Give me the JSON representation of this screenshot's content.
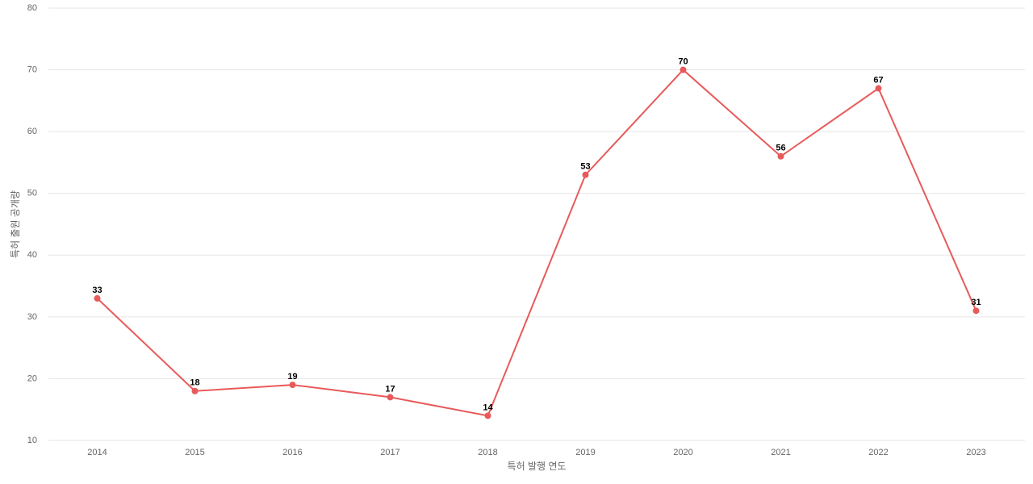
{
  "chart_data": {
    "type": "line",
    "x_label": "특허 발행 연도",
    "y_label": "특허 출원 공개량",
    "categories": [
      "2014",
      "2015",
      "2016",
      "2017",
      "2018",
      "2019",
      "2020",
      "2021",
      "2022",
      "2023"
    ],
    "values": [
      33,
      18,
      19,
      17,
      14,
      53,
      70,
      56,
      67,
      31
    ],
    "color": "#e85a5a",
    "ylim": [
      10,
      80
    ],
    "yticks": [
      10,
      20,
      30,
      40,
      50,
      60,
      70,
      80
    ],
    "grid": true
  }
}
